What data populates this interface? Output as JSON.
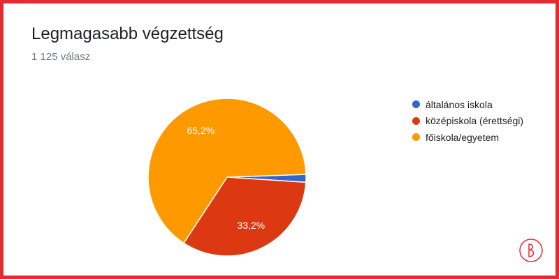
{
  "header": {
    "title": "Legmagasabb végzettség",
    "subtitle": "1 125 válasz"
  },
  "colors": {
    "border": "#e32b34",
    "logo": "#e32b34"
  },
  "chart_data": {
    "type": "pie",
    "title": "Legmagasabb végzettség",
    "subtitle": "1 125 válasz",
    "legend_position": "right",
    "slices": [
      {
        "label": "általános iskola",
        "value": 1.6,
        "color": "#3366cc",
        "data_label": ""
      },
      {
        "label": "középiskola (érettségi)",
        "value": 33.2,
        "color": "#dc3912",
        "data_label": "33,2%"
      },
      {
        "label": "főiskola/egyetem",
        "value": 65.2,
        "color": "#ff9900",
        "data_label": "65,2%"
      }
    ]
  }
}
